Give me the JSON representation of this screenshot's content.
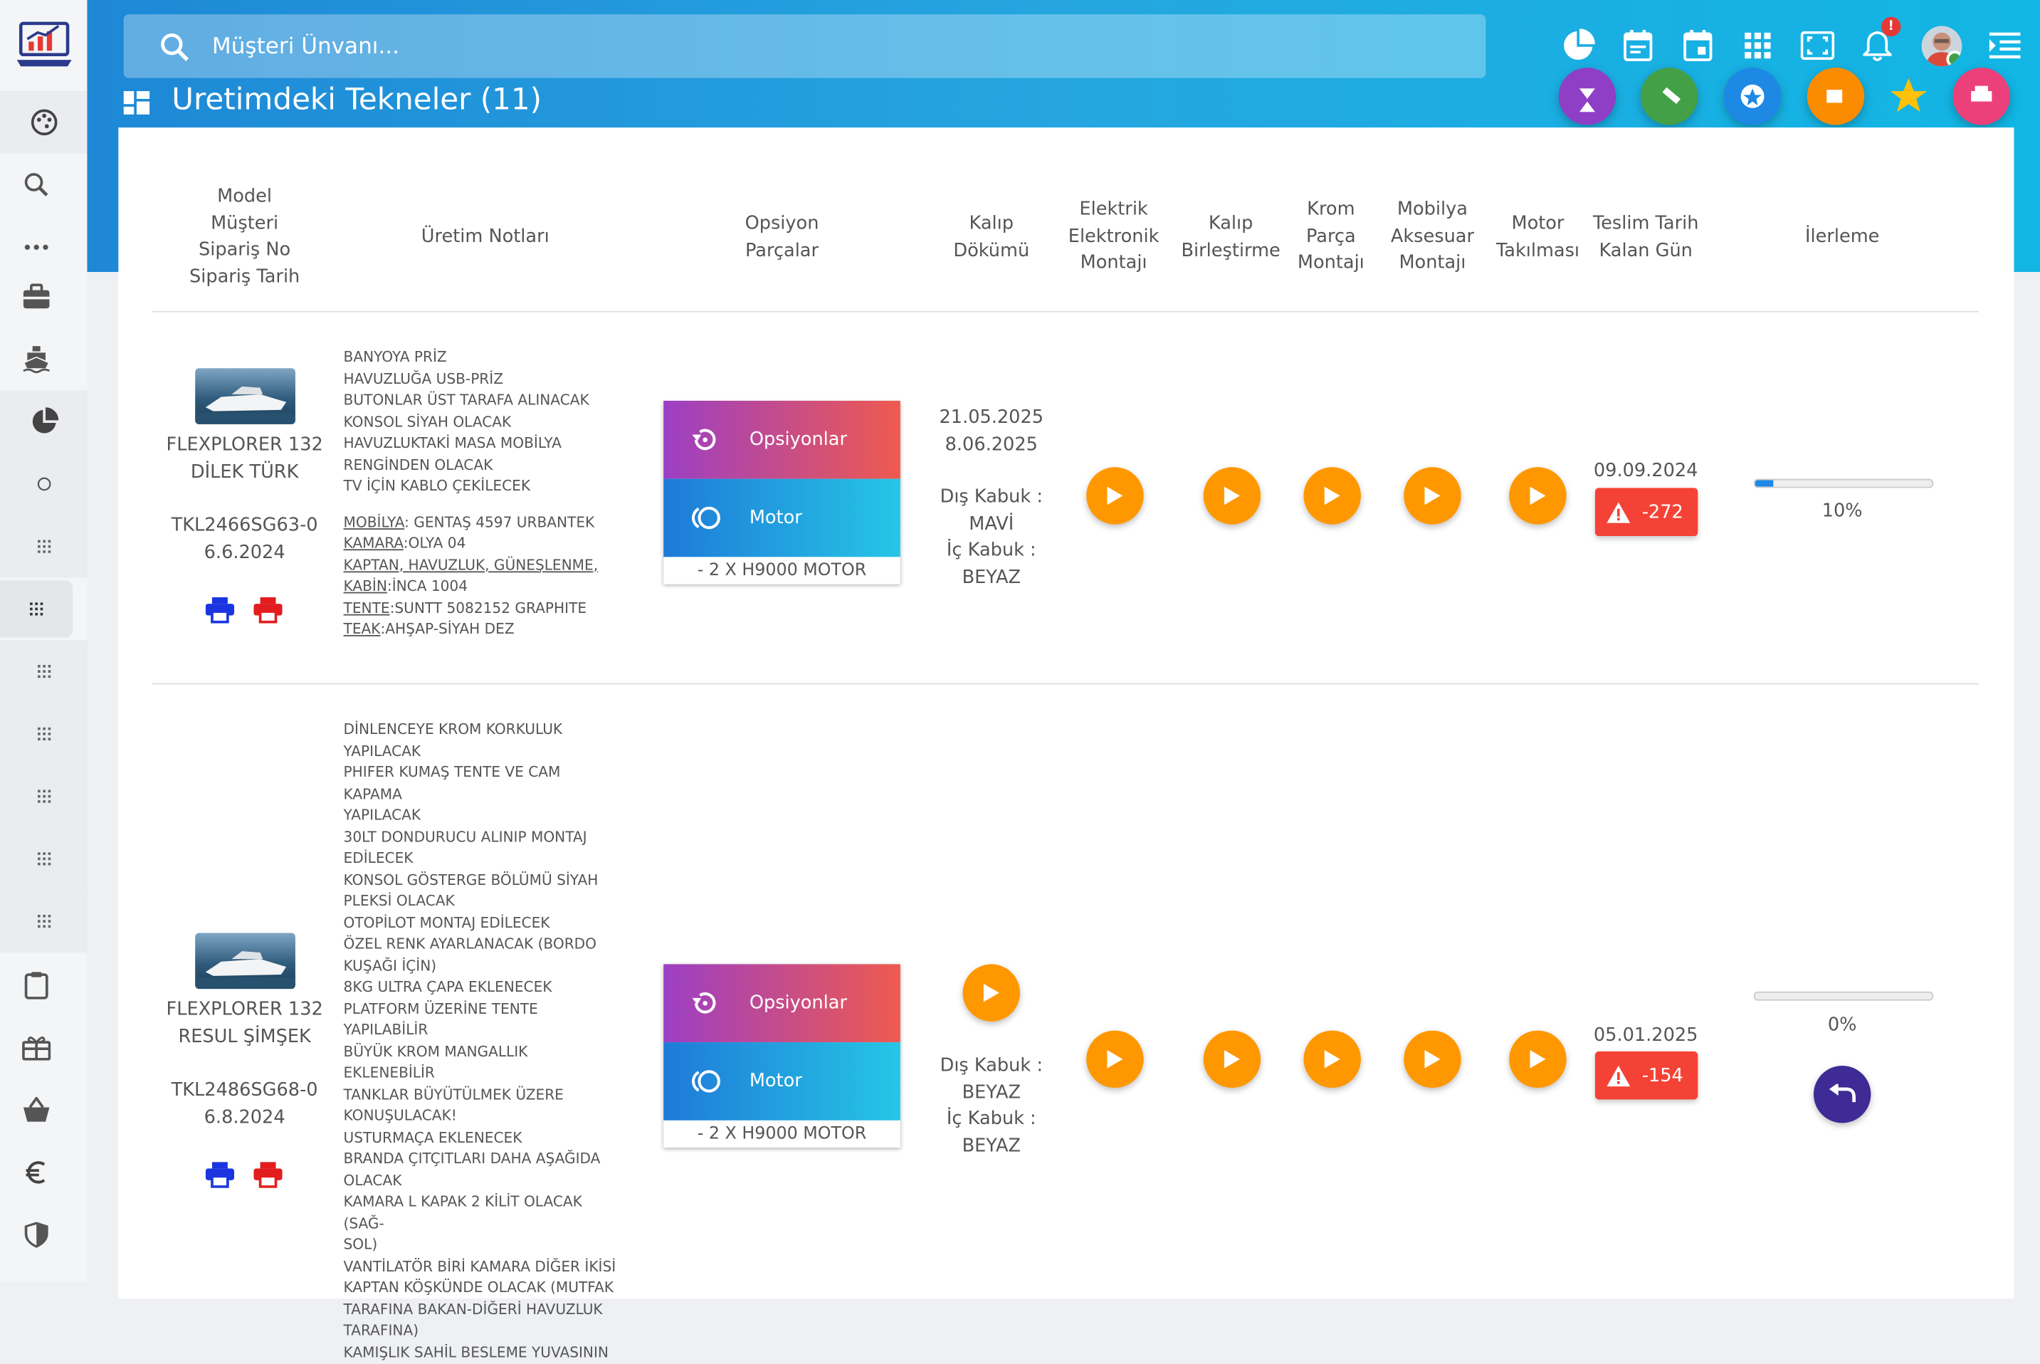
{
  "search": {
    "placeholder": "Müşteri Ünvanı..."
  },
  "page": {
    "title": "Uretimdeki Tekneler (11)"
  },
  "table": {
    "headers": {
      "model": [
        "Model",
        "Müşteri",
        "Sipariş No",
        "Sipariş Tarih"
      ],
      "notes": [
        "Üretim Notları"
      ],
      "options": [
        "Opsiyon",
        "Parçalar"
      ],
      "kalip": [
        "Kalıp",
        "Dökümü"
      ],
      "elektrik": [
        "Elektrik",
        "Elektronik",
        "Montajı"
      ],
      "birlestirme": [
        "Kalıp",
        "Birleştirme"
      ],
      "krom": [
        "Krom",
        "Parça",
        "Montajı"
      ],
      "mobilya": [
        "Mobilya",
        "Aksesuar",
        "Montajı"
      ],
      "motor": [
        "Motor",
        "Takılması"
      ],
      "teslim": [
        "Teslim Tarih",
        "Kalan Gün"
      ],
      "ilerleme": [
        "İlerleme"
      ]
    },
    "rows": [
      {
        "model": "FLEXPLORER 132",
        "customer": "DİLEK TÜRK",
        "order_no": "TKL2466SG63-0",
        "order_date": "6.6.2024",
        "notes": [
          "BANYOYA PRİZ",
          "HAVUZLUĞA USB-PRİZ",
          "BUTONLAR ÜST TARAFA ALINACAK",
          "KONSOL SİYAH OLACAK",
          "HAVUZLUKTAKİ MASA MOBİLYA",
          "RENGİNDEN OLACAK",
          "TV İÇİN KABLO ÇEKİLECEK"
        ],
        "specs": [
          {
            "label": "MOBİLYA",
            "value": ": GENTAŞ 4597 URBANTEK"
          },
          {
            "label": "KAMARA",
            "value": ":OLYA 04"
          },
          {
            "label": "KAPTAN, HAVUZLUK, GÜNEŞLENME,",
            "value": ""
          },
          {
            "label": "KABİN",
            "value": ":İNCA 1004"
          },
          {
            "label": "TENTE",
            "value": ":SUNTT 5082152 GRAPHITE"
          },
          {
            "label": "TEAK",
            "value": ":AHŞAP-SİYAH DEZ"
          }
        ],
        "options_label": "Opsiyonlar",
        "motor_label": "Motor",
        "motor_value": "- 2 X H9000 MOTOR",
        "kalip_dates": [
          "21.05.2025",
          "8.06.2025"
        ],
        "dis_kabuk_label": "Dış Kabuk :",
        "dis_kabuk": "MAVİ",
        "ic_kabuk_label": "İç Kabuk :",
        "ic_kabuk": "BEYAZ",
        "teslim": "09.09.2024",
        "kalan": "-272",
        "progress_pct": 10,
        "progress_label": "10%"
      },
      {
        "model": "FLEXPLORER 132",
        "customer": "RESUL ŞİMŞEK",
        "order_no": "TKL2486SG68-0",
        "order_date": "6.8.2024",
        "notes": [
          "DİNLENCEYE KROM KORKULUK",
          "YAPILACAK",
          "PHIFER KUMAŞ TENTE VE CAM KAPAMA",
          "YAPILACAK",
          "30LT DONDURUCU ALINIP MONTAJ",
          "EDİLECEK",
          "KONSOL GÖSTERGE BÖLÜMÜ SİYAH",
          "PLEKSİ OLACAK",
          "OTOPİLOT MONTAJ EDİLECEK",
          "ÖZEL RENK AYARLANACAK (BORDO",
          "KUŞAĞI İÇİN)",
          "8KG ULTRA ÇAPA EKLENECEK",
          "PLATFORM ÜZERİNE TENTE YAPILABİLİR",
          "BÜYÜK KROM MANGALLIK EKLENEBİLİR",
          "TANKLAR BÜYÜTÜLMEK ÜZERE",
          "KONUŞULACAK!",
          "USTURMAÇA EKLENECEK",
          "BRANDA ÇITÇITLARI DAHA AŞAĞIDA",
          "OLACAK",
          "KAMARA L KAPAK 2 KİLİT OLACAK (SAĞ-",
          "SOL)",
          "VANTİLATÖR BİRİ KAMARA DİĞER İKİSİ",
          "KAPTAN KÖŞKÜNDE OLACAK (MUTFAK",
          "TARAFINA BAKAN-DİĞERİ HAVUZLUK",
          "TARAFINA)",
          "KAMIŞLIK SAHİL BESLEME YUVASININ"
        ],
        "options_label": "Opsiyonlar",
        "motor_label": "Motor",
        "motor_value": "- 2 X H9000 MOTOR",
        "dis_kabuk_label": "Dış Kabuk :",
        "dis_kabuk": "BEYAZ",
        "ic_kabuk_label": "İç Kabuk :",
        "ic_kabuk": "BEYAZ",
        "teslim": "05.01.2025",
        "kalan": "-154",
        "progress_pct": 0,
        "progress_label": "0%"
      }
    ]
  },
  "notifications": {
    "badge": "!"
  },
  "colors": {
    "header_gradient": [
      "#1e88d6",
      "#11b6e4"
    ],
    "play": "#ff9800",
    "late": "#f44336",
    "progress": "#1e88e5",
    "undo": "#3f2b96",
    "print_blue": "#1a35e0",
    "print_red": "#e21d1d"
  },
  "icons": {
    "sidebar": [
      "palette-icon",
      "search-icon",
      "more-icon",
      "briefcase-icon",
      "ship-icon",
      "pie-chart-icon",
      "circle-icon",
      "grid-icon",
      "grid-icon",
      "grid-icon",
      "grid-icon",
      "grid-icon",
      "grid-icon",
      "grid-icon",
      "clipboard-icon",
      "gift-icon",
      "basket-icon",
      "euro-icon",
      "shield-icon"
    ],
    "topbar": [
      "pie-chart-icon",
      "calendar-icon",
      "calendar-event-icon",
      "apps-grid-icon",
      "fullscreen-icon",
      "bell-icon",
      "menu-collapse-icon"
    ],
    "fabs": [
      "hourglass-icon",
      "wrench-icon",
      "star-badge-icon",
      "thumb-icon",
      "star-icon",
      "printer-icon"
    ]
  }
}
